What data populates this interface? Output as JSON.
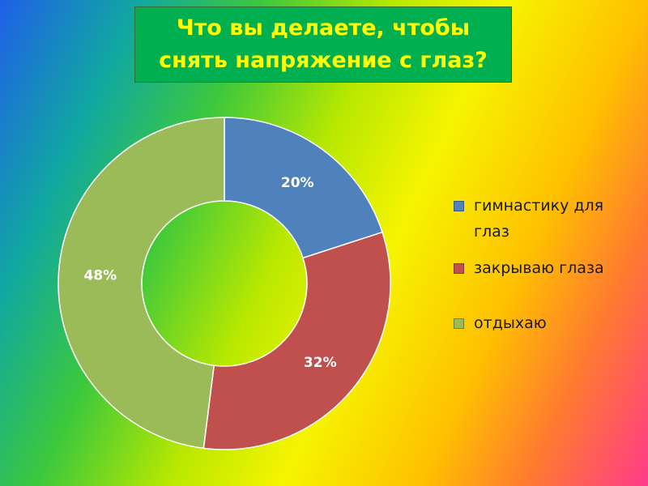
{
  "chart_data": {
    "type": "donut",
    "title": "Что вы делаете, чтобы снять напряжение с глаз?",
    "categories": [
      "гимнастику для глаз",
      "закрываю глаза",
      "отдыхаю"
    ],
    "values": [
      20,
      32,
      48
    ],
    "value_labels": [
      "20%",
      "32%",
      "48%"
    ],
    "colors": [
      "#4f81bd",
      "#c0504d",
      "#9bbb59"
    ],
    "legend": "right"
  }
}
